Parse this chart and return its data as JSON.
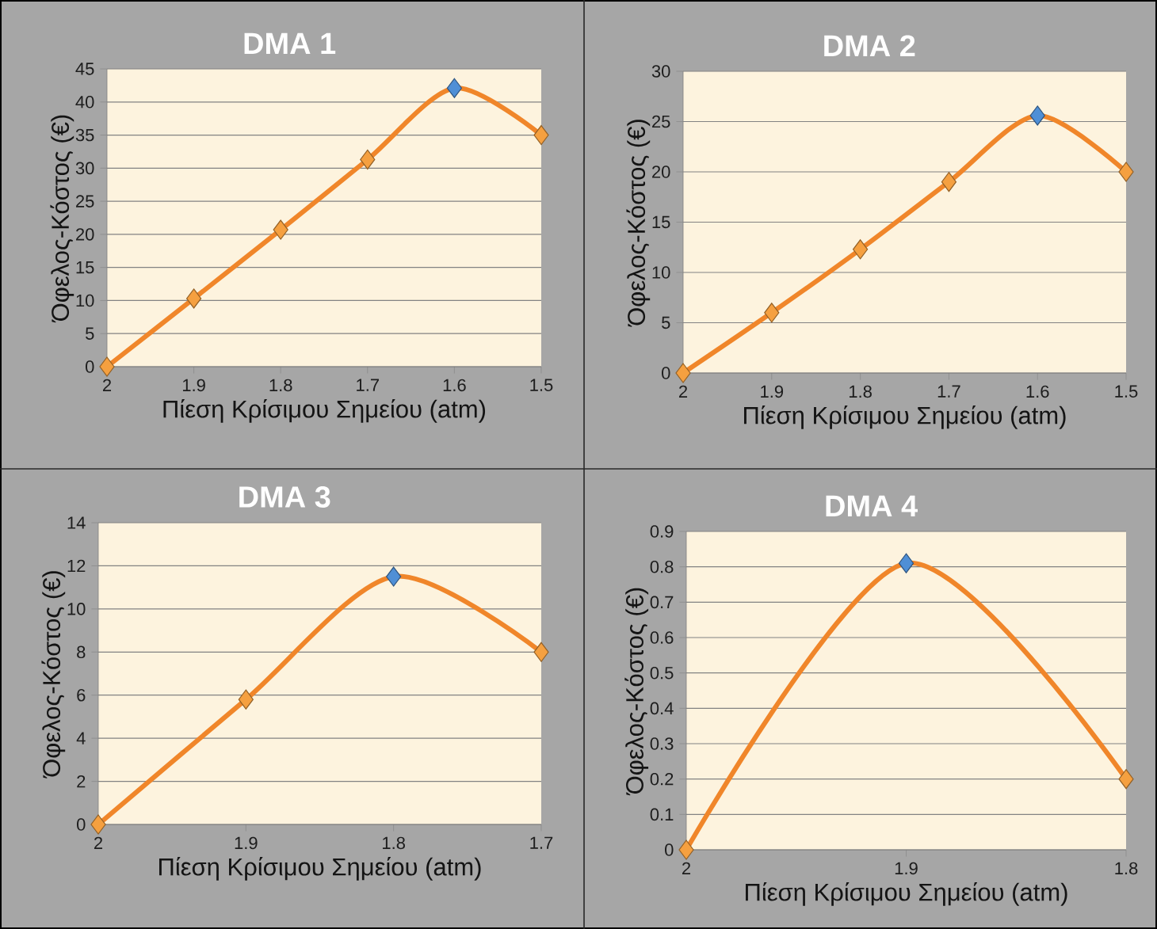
{
  "chart_data": [
    {
      "type": "line",
      "title": "DMA 1",
      "xlabel": "Πίεση Κρίσιμου Σημείου (atm)",
      "ylabel": "Όφελος-Κόστος (€)",
      "categories": [
        "2",
        "1.9",
        "1.8",
        "1.7",
        "1.6",
        "1.5"
      ],
      "series": [
        {
          "color": "#f0862a",
          "values": [
            0,
            10.3,
            20.7,
            31.3,
            42.1,
            35
          ],
          "colors": [
            "#f5a040",
            "#f5a040",
            "#f5a040",
            "#f5a040",
            "#4f8fd6",
            "#f5a040"
          ]
        }
      ],
      "ylim": [
        0,
        45
      ],
      "yticks": [
        0,
        5,
        10,
        15,
        20,
        25,
        30,
        35,
        40,
        45
      ],
      "grid": "y",
      "marker": "diamond",
      "line_style": "solid"
    },
    {
      "type": "line",
      "title": "DMA 2",
      "xlabel": "Πίεση Κρίσιμου Σημείου (atm)",
      "ylabel": "Όφελος-Κόστος (€)",
      "categories": [
        "2",
        "1.9",
        "1.8",
        "1.7",
        "1.6",
        "1.5"
      ],
      "series": [
        {
          "color": "#f0862a",
          "values": [
            0,
            6,
            12.3,
            19,
            25.6,
            20
          ],
          "colors": [
            "#f5a040",
            "#f5a040",
            "#f5a040",
            "#f5a040",
            "#4f8fd6",
            "#f5a040"
          ]
        }
      ],
      "ylim": [
        0,
        30
      ],
      "yticks": [
        0,
        5,
        10,
        15,
        20,
        25,
        30
      ],
      "grid": "y",
      "marker": "diamond",
      "line_style": "solid"
    },
    {
      "type": "line",
      "title": "DMA 3",
      "xlabel": "Πίεση Κρίσιμου Σημείου (atm)",
      "ylabel": "Όφελος-Κόστος (€)",
      "categories": [
        "2",
        "1.9",
        "1.8",
        "1.7"
      ],
      "series": [
        {
          "color": "#f0862a",
          "values": [
            0,
            5.8,
            11.5,
            8
          ],
          "colors": [
            "#f5a040",
            "#f5a040",
            "#4f8fd6",
            "#f5a040"
          ]
        }
      ],
      "ylim": [
        0,
        14
      ],
      "yticks": [
        0,
        2,
        4,
        6,
        8,
        10,
        12,
        14
      ],
      "grid": "y",
      "marker": "diamond",
      "line_style": "solid"
    },
    {
      "type": "line",
      "title": "DMA 4",
      "xlabel": "Πίεση Κρίσιμου Σημείου (atm)",
      "ylabel": "Όφελος-Κόστος (€)",
      "categories": [
        "2",
        "1.9",
        "1.8"
      ],
      "series": [
        {
          "color": "#f0862a",
          "values": [
            0,
            0.81,
            0.2
          ],
          "colors": [
            "#f5a040",
            "#4f8fd6",
            "#f5a040"
          ]
        }
      ],
      "ylim": [
        0,
        0.9
      ],
      "yticks": [
        0,
        0.1,
        0.2,
        0.3,
        0.4,
        0.5,
        0.6,
        0.7,
        0.8,
        0.9
      ],
      "grid": "y",
      "marker": "diamond",
      "line_style": "solid"
    }
  ]
}
